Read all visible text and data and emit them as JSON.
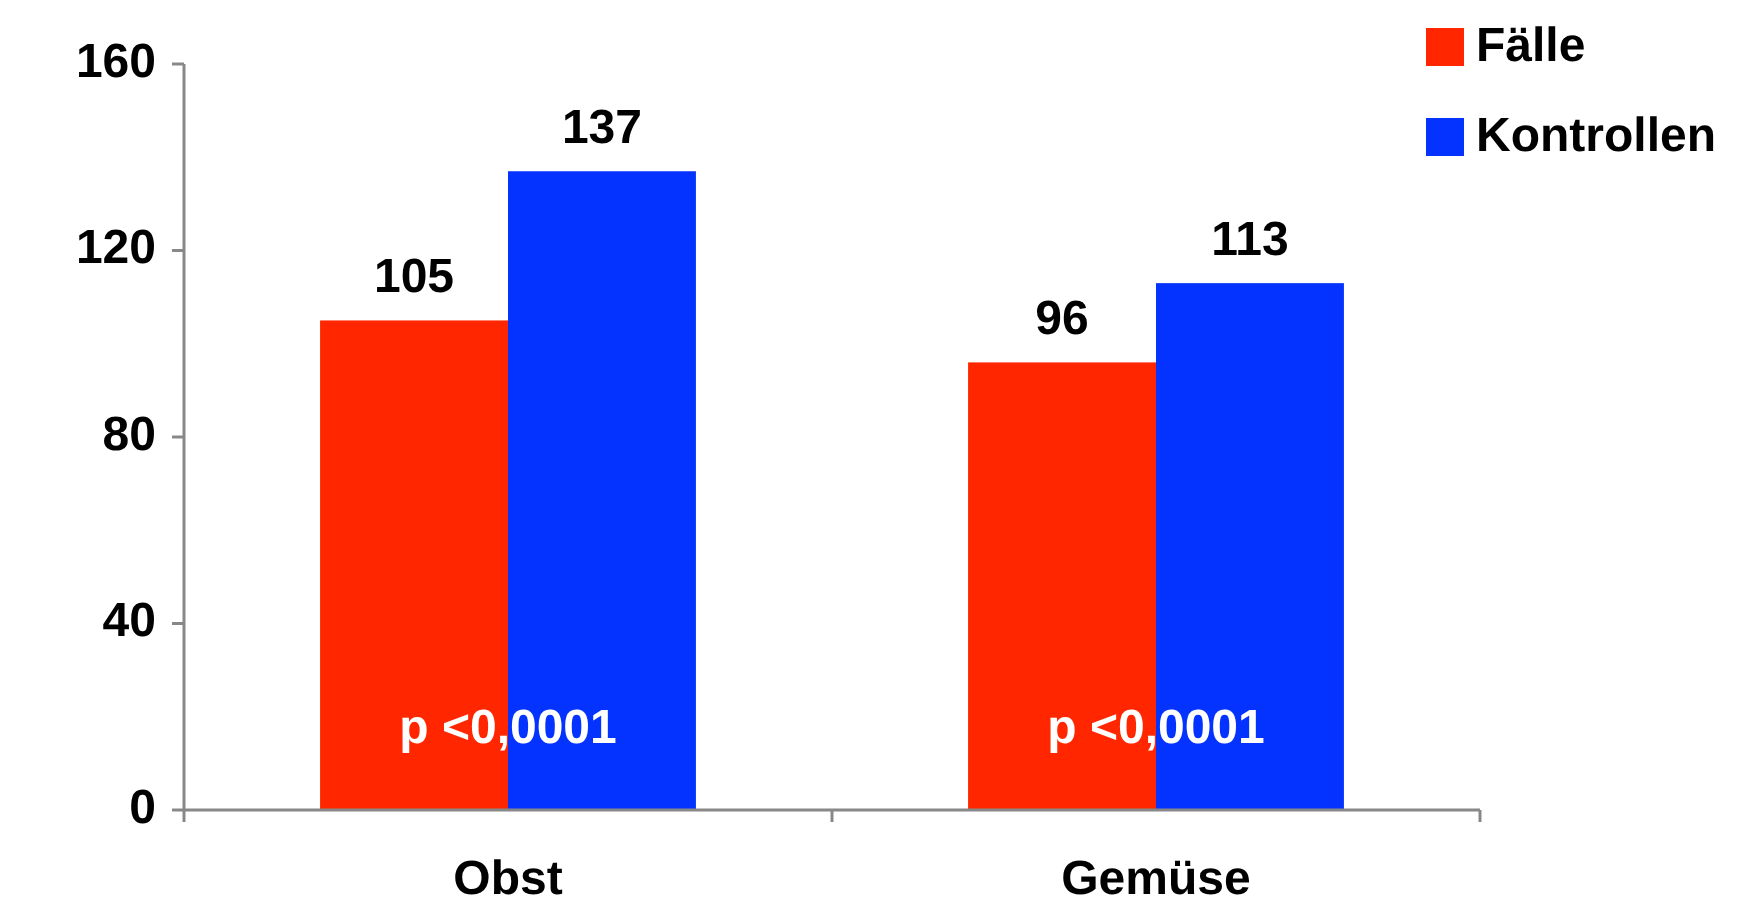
{
  "chart_data": {
    "type": "bar",
    "categories": [
      "Obst",
      "Gemüse"
    ],
    "series": [
      {
        "name": "Fälle",
        "color": "#ff2600",
        "values": [
          105,
          96
        ]
      },
      {
        "name": "Kontrollen",
        "color": "#0433ff",
        "values": [
          137,
          113
        ]
      }
    ],
    "ylim": [
      0,
      160
    ],
    "yticks": [
      0,
      40,
      80,
      120,
      160
    ],
    "data_labels": true,
    "legend": "top right",
    "grid": false,
    "annotations": [
      {
        "text": "p <0,0001",
        "x": "Obst",
        "y": 17
      },
      {
        "text": "p <0,0001",
        "x": "Gemüse",
        "y": 17
      }
    ]
  }
}
